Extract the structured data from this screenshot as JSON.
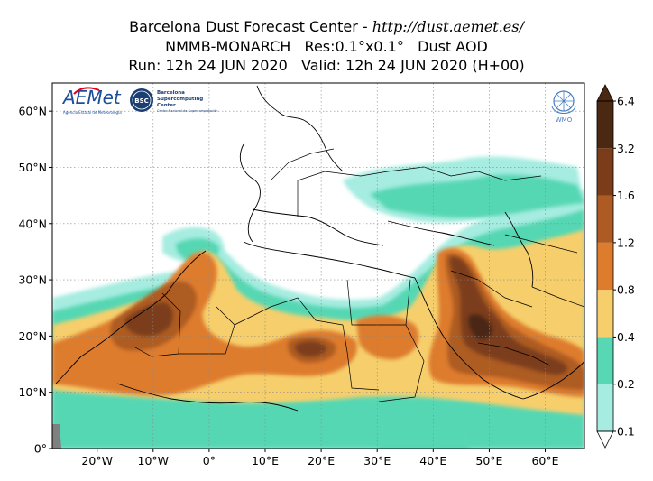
{
  "title": {
    "line1_prefix": "Barcelona Dust Forecast Center - ",
    "line1_url": "http://dust.aemet.es/",
    "line2": "NMMB-MONARCH   Res:0.1°x0.1°   Dust AOD",
    "line3": "Run: 12h 24 JUN 2020   Valid: 12h 24 JUN 2020 (H+00)"
  },
  "map": {
    "lon_range": [
      -28,
      67
    ],
    "lat_range": [
      0,
      65
    ],
    "lon_ticks": [
      {
        "value": -20,
        "label": "20°W"
      },
      {
        "value": -10,
        "label": "10°W"
      },
      {
        "value": 0,
        "label": "0°"
      },
      {
        "value": 10,
        "label": "10°E"
      },
      {
        "value": 20,
        "label": "20°E"
      },
      {
        "value": 30,
        "label": "30°E"
      },
      {
        "value": 40,
        "label": "40°E"
      },
      {
        "value": 50,
        "label": "50°E"
      },
      {
        "value": 60,
        "label": "60°E"
      }
    ],
    "lat_ticks": [
      {
        "value": 0,
        "label": "0°"
      },
      {
        "value": 10,
        "label": "10°N"
      },
      {
        "value": 20,
        "label": "20°N"
      },
      {
        "value": 30,
        "label": "30°N"
      },
      {
        "value": 40,
        "label": "40°N"
      },
      {
        "value": 50,
        "label": "50°N"
      },
      {
        "value": 60,
        "label": "60°N"
      }
    ],
    "grid": true
  },
  "colorbar": {
    "levels": [
      "0.1",
      "0.2",
      "0.4",
      "0.8",
      "1.2",
      "1.6",
      "3.2",
      "6.4"
    ],
    "colors": [
      "#ffffff",
      "#a6ece0",
      "#57d7b3",
      "#f6cf6c",
      "#de7c2e",
      "#ad5b22",
      "#7b3c1a",
      "#4a2812"
    ],
    "extend": "both"
  },
  "logos": {
    "aemet": "AEMet",
    "aemet_sub": "Agencia Estatal de Meteorología",
    "bsc": "BSC",
    "bsc_name_1": "Barcelona",
    "bsc_name_2": "Supercomputing",
    "bsc_name_3": "Center",
    "bsc_sub": "Centro Nacional de Supercomputación",
    "wmo": "WMO"
  }
}
